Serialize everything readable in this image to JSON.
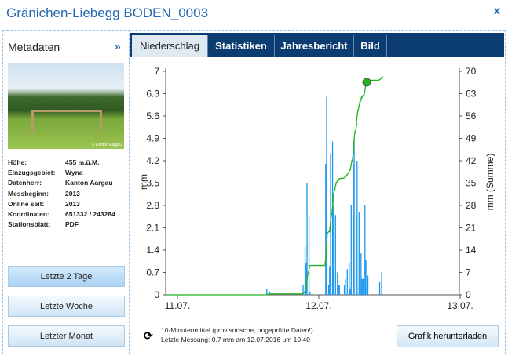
{
  "window": {
    "title": "Gränichen-Liebegg BODEN_0003",
    "close_label": "x"
  },
  "sidebar": {
    "title": "Metadaten",
    "expand_label": "»",
    "photo_credit": "© Kanton Aargau",
    "meta": [
      {
        "label": "Höhe:",
        "value": "455 m.ü.M."
      },
      {
        "label": "Einzugsgebiet:",
        "value": "Wyna"
      },
      {
        "label": "Datenherr:",
        "value": "Kanton Aargau"
      },
      {
        "label": "Messbeginn:",
        "value": "2013"
      },
      {
        "label": "Online seit:",
        "value": "2013"
      },
      {
        "label": "Koordinaten:",
        "value": "651332 / 243284"
      },
      {
        "label": "Stationsblatt:",
        "value": "PDF"
      }
    ],
    "buttons": [
      "Letzte 2 Tage",
      "Letzte Woche",
      "Letzter Monat"
    ],
    "active_button": 0
  },
  "tabs": [
    "Niederschlag",
    "Statistiken",
    "Jahresbericht",
    "Bild"
  ],
  "active_tab": 0,
  "footer": {
    "note": "10-Minutenmittel (provisorische, ungeprüfte Daten!)",
    "last": "Letzte Messung: 0.7 mm am 12.07.2016 um 10:40",
    "download": "Grafik herunterladen"
  },
  "chart_data": {
    "type": "bar+line",
    "ylabel": "mm",
    "y2label": "mm (Summe)",
    "ylim": [
      0,
      7
    ],
    "y2lim": [
      0,
      70
    ],
    "yticks": [
      "0",
      "0.7",
      "1.4",
      "2.1",
      "2.8",
      "3.5",
      "4.2",
      "4.9",
      "5.6",
      "6.3",
      "7"
    ],
    "y2ticks": [
      "0",
      "7",
      "14",
      "21",
      "28",
      "35",
      "42",
      "49",
      "56",
      "63",
      "70"
    ],
    "xticks": [
      "11.07.",
      "12.07.",
      "13.07."
    ],
    "bar_color": "#1b97ef",
    "line_color": "#22b51f",
    "marker_time": "12.07. 08:00",
    "bars": [
      [
        "11.07. 15:10",
        0.2
      ],
      [
        "11.07. 15:40",
        0.1
      ],
      [
        "11.07. 21:20",
        0.3
      ],
      [
        "11.07. 21:40",
        1.5
      ],
      [
        "11.07. 21:50",
        1.0
      ],
      [
        "11.07. 22:00",
        3.5
      ],
      [
        "11.07. 22:20",
        2.5
      ],
      [
        "11.07. 22:30",
        0.1
      ],
      [
        "12.07. 01:10",
        4.1
      ],
      [
        "12.07. 01:20",
        6.2
      ],
      [
        "12.07. 01:40",
        0.3
      ],
      [
        "12.07. 01:50",
        0.9
      ],
      [
        "12.07. 02:00",
        4.4
      ],
      [
        "12.07. 02:20",
        4.8
      ],
      [
        "12.07. 02:30",
        2.8
      ],
      [
        "12.07. 02:50",
        2.5
      ],
      [
        "12.07. 03:10",
        0.7
      ],
      [
        "12.07. 03:20",
        0.3
      ],
      [
        "12.07. 03:30",
        0.3
      ],
      [
        "12.07. 04:20",
        0.3
      ],
      [
        "12.07. 04:30",
        0.5
      ],
      [
        "12.07. 04:50",
        0.8
      ],
      [
        "12.07. 05:10",
        1.0
      ],
      [
        "12.07. 05:20",
        0.2
      ],
      [
        "12.07. 05:30",
        2.8
      ],
      [
        "12.07. 05:50",
        4.1
      ],
      [
        "12.07. 06:00",
        4.9
      ],
      [
        "12.07. 06:20",
        2.5
      ],
      [
        "12.07. 06:30",
        4.2
      ],
      [
        "12.07. 06:50",
        2.6
      ],
      [
        "12.07. 07:10",
        1.3
      ],
      [
        "12.07. 07:20",
        0.5
      ],
      [
        "12.07. 07:30",
        0.5
      ],
      [
        "12.07. 07:50",
        2.8
      ],
      [
        "12.07. 08:00",
        1.1
      ],
      [
        "12.07. 08:20",
        0.6
      ],
      [
        "12.07. 10:20",
        0.4
      ],
      [
        "12.07. 10:40",
        0.7
      ]
    ]
  }
}
